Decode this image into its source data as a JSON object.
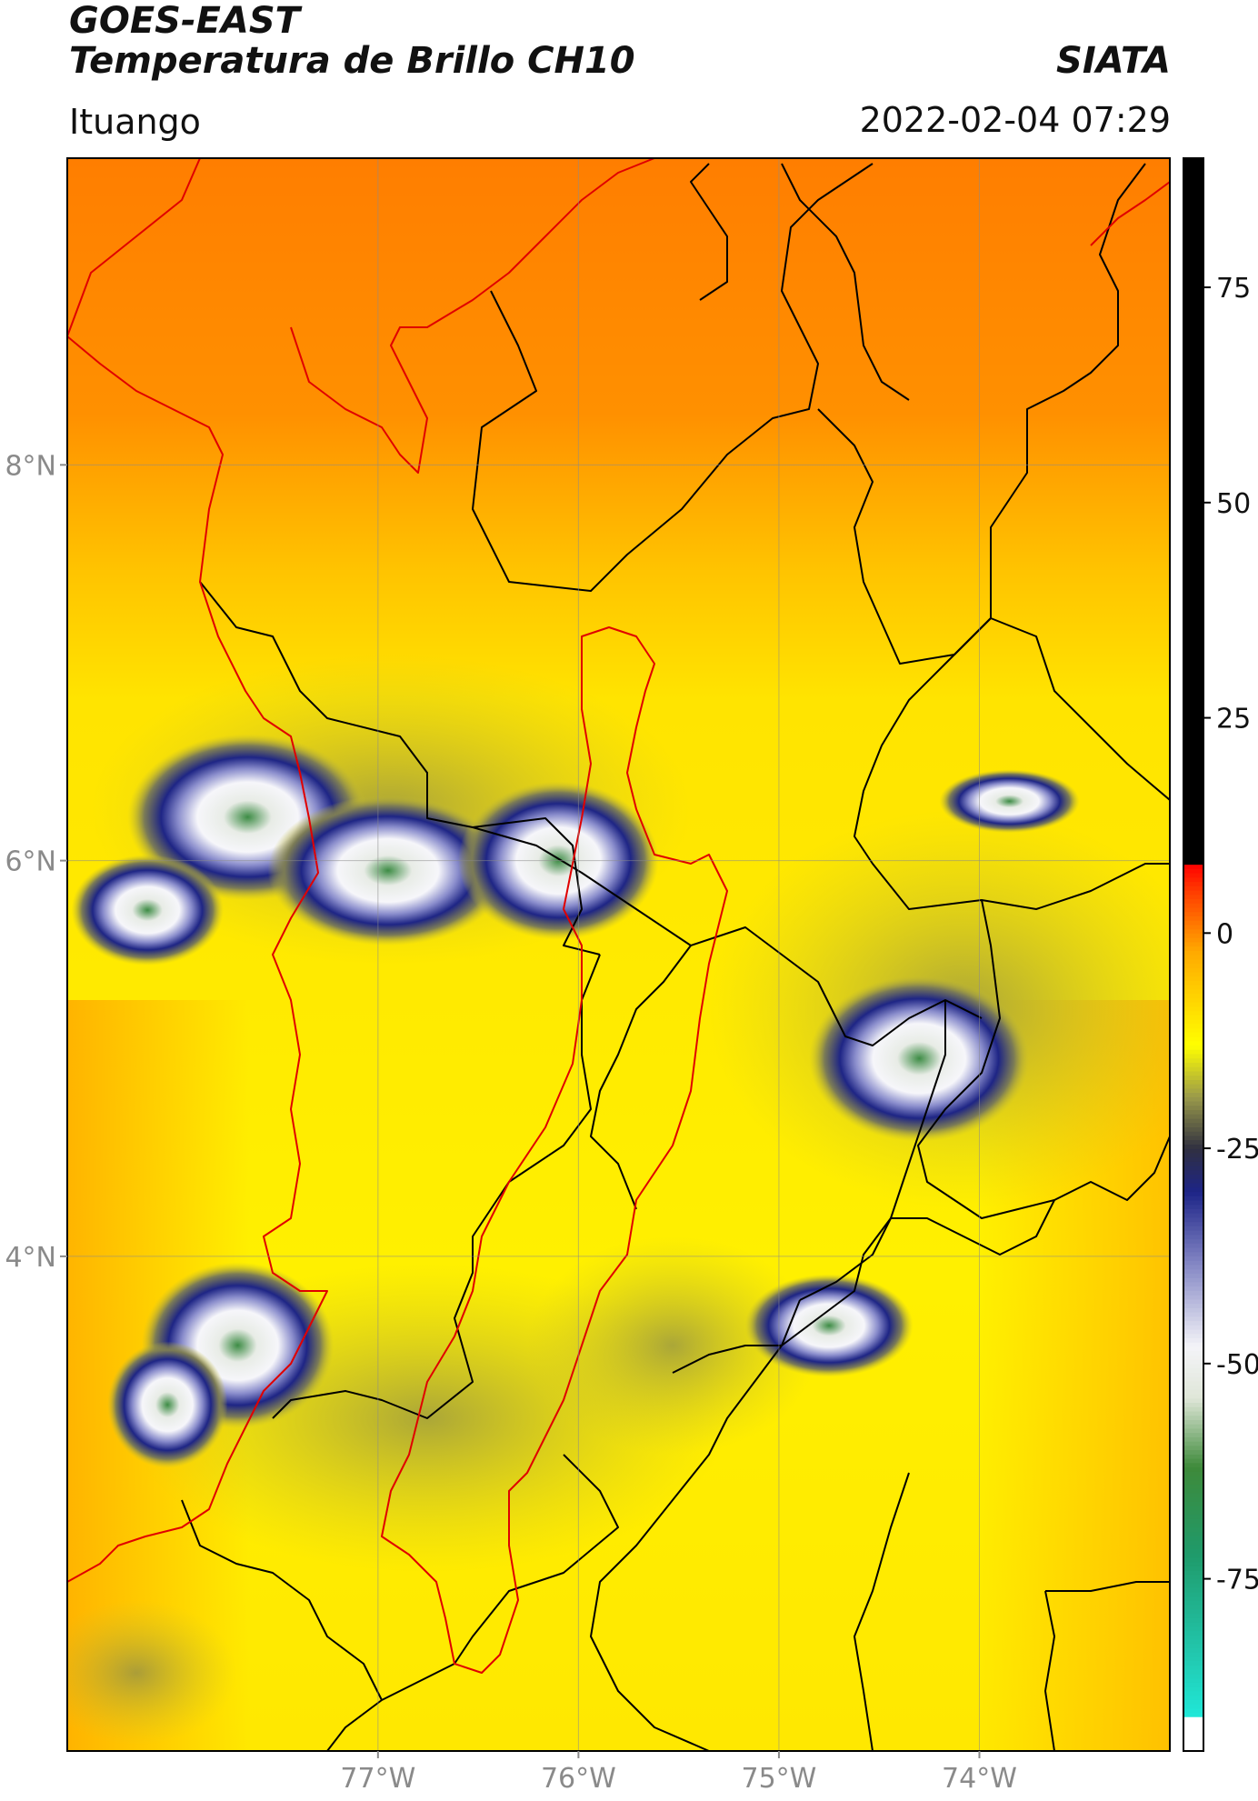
{
  "header": {
    "satellite": "GOES-EAST",
    "product": "Temperatura de Brillo CH10",
    "organization": "SIATA",
    "location": "Ituango",
    "timestamp": "2022-02-04 07:29"
  },
  "map": {
    "lon_range": [
      -78.55,
      -73.05
    ],
    "lat_range": [
      1.5,
      9.55
    ],
    "lon_ticks": [
      {
        "value": -77,
        "label": "77°W"
      },
      {
        "value": -76,
        "label": "76°W"
      },
      {
        "value": -75,
        "label": "75°W"
      },
      {
        "value": -74,
        "label": "74°W"
      }
    ],
    "lat_ticks": [
      {
        "value": 8,
        "label": "8°N"
      },
      {
        "value": 6,
        "label": "6°N"
      },
      {
        "value": 4,
        "label": "4°N"
      }
    ],
    "gridlines": true,
    "colors": {
      "warm_orange": "#ff8a00",
      "mid_orange": "#ffb200",
      "yellow": "#ffe600",
      "olive": "#a9a83a",
      "navy": "#1e2585",
      "white": "#f4f4f8",
      "green": "#3c8a4a",
      "border_black": "#000000",
      "border_red": "#e00000"
    }
  },
  "colorbar": {
    "range": [
      -95,
      90
    ],
    "ticks": [
      {
        "value": 75,
        "label": "75"
      },
      {
        "value": 50,
        "label": "50"
      },
      {
        "value": 25,
        "label": "25"
      },
      {
        "value": 0,
        "label": "0"
      },
      {
        "value": -25,
        "label": "-25"
      },
      {
        "value": -50,
        "label": "-50"
      },
      {
        "value": -75,
        "label": "-75"
      }
    ],
    "stops": [
      {
        "value": -95,
        "color": "#ffffff"
      },
      {
        "value": -91,
        "color": "#ffffff"
      },
      {
        "value": -91,
        "color": "#20e8d8"
      },
      {
        "value": -84,
        "color": "#22c9b0"
      },
      {
        "value": -72,
        "color": "#1f9a6a"
      },
      {
        "value": -62,
        "color": "#3e8a3a"
      },
      {
        "value": -54,
        "color": "#dfe6d8"
      },
      {
        "value": -48,
        "color": "#f4f4f8"
      },
      {
        "value": -38,
        "color": "#7f82c2"
      },
      {
        "value": -30,
        "color": "#1d2487"
      },
      {
        "value": -25,
        "color": "#303040"
      },
      {
        "value": -19,
        "color": "#9a9a4a"
      },
      {
        "value": -13,
        "color": "#ffff00"
      },
      {
        "value": -2,
        "color": "#ffa800"
      },
      {
        "value": 5,
        "color": "#ff3a00"
      },
      {
        "value": 8,
        "color": "#ff0000"
      },
      {
        "value": 8,
        "color": "#000000"
      },
      {
        "value": 90,
        "color": "#000000"
      }
    ]
  },
  "clouds": [
    {
      "lon": -77.65,
      "lat": 6.22,
      "rx": 0.6,
      "ry": 0.42
    },
    {
      "lon": -76.95,
      "lat": 5.95,
      "rx": 0.6,
      "ry": 0.38
    },
    {
      "lon": -78.15,
      "lat": 5.75,
      "rx": 0.38,
      "ry": 0.28
    },
    {
      "lon": -76.1,
      "lat": 6.0,
      "rx": 0.5,
      "ry": 0.4
    },
    {
      "lon": -77.7,
      "lat": 3.55,
      "rx": 0.48,
      "ry": 0.42
    },
    {
      "lon": -78.05,
      "lat": 3.25,
      "rx": 0.3,
      "ry": 0.32
    },
    {
      "lon": -74.75,
      "lat": 3.65,
      "rx": 0.42,
      "ry": 0.26
    },
    {
      "lon": -74.3,
      "lat": 5.0,
      "rx": 0.55,
      "ry": 0.42
    },
    {
      "lon": -73.85,
      "lat": 6.3,
      "rx": 0.35,
      "ry": 0.16
    }
  ]
}
